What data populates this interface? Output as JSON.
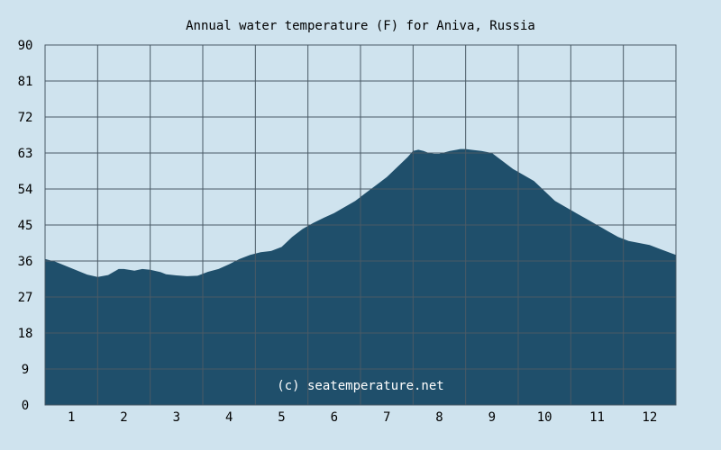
{
  "chart_data": {
    "type": "area",
    "title": "Annual water temperature (F) for Aniva, Russia",
    "xlabel": "",
    "ylabel": "",
    "categories": [
      "1",
      "2",
      "3",
      "4",
      "5",
      "6",
      "7",
      "8",
      "9",
      "10",
      "11",
      "12"
    ],
    "ylim": [
      0,
      90
    ],
    "yticks": [
      0,
      9,
      18,
      27,
      36,
      45,
      54,
      63,
      72,
      81,
      90
    ],
    "grid": true,
    "annotation": "(c) seatemperature.net",
    "series": [
      {
        "x": [
          0.5,
          0.7,
          1.0,
          1.3,
          1.5,
          1.7,
          1.9,
          2.0,
          2.2,
          2.35,
          2.5,
          2.7,
          2.8,
          3.0,
          3.2,
          3.4,
          3.6,
          3.8,
          4.0,
          4.2,
          4.4,
          4.6,
          4.8,
          5.0,
          5.2,
          5.4,
          5.6,
          5.8,
          6.0,
          6.2,
          6.4,
          6.6,
          6.8,
          7.0,
          7.2,
          7.4,
          7.5,
          7.6,
          7.7,
          7.8,
          7.9,
          8.0,
          8.2,
          8.4,
          8.5,
          8.6,
          8.8,
          9.0,
          9.2,
          9.4,
          9.6,
          9.8,
          10.0,
          10.2,
          10.4,
          10.6,
          10.8,
          11.0,
          11.2,
          11.4,
          11.6,
          11.8,
          12.0,
          12.2,
          12.4,
          12.5
        ],
        "values": [
          36.5,
          35.8,
          34.2,
          32.6,
          32.0,
          32.5,
          34.0,
          34.0,
          33.6,
          34.0,
          33.8,
          33.2,
          32.7,
          32.4,
          32.2,
          32.3,
          33.3,
          34.0,
          35.2,
          36.5,
          37.5,
          38.2,
          38.5,
          39.5,
          42.0,
          44.0,
          45.5,
          46.8,
          48.0,
          49.5,
          51.0,
          53.0,
          55.0,
          57.0,
          59.5,
          62.0,
          63.5,
          63.8,
          63.5,
          63.0,
          62.8,
          62.8,
          63.5,
          64.0,
          64.0,
          63.8,
          63.5,
          63.0,
          61.0,
          59.0,
          57.5,
          56.0,
          53.5,
          51.0,
          49.5,
          48.0,
          46.5,
          45.0,
          43.5,
          42.0,
          41.0,
          40.5,
          40.0,
          39.0,
          38.0,
          37.5
        ]
      }
    ],
    "colors": {
      "background": "#cfe3ee",
      "area": "#1f4f6b",
      "grid": "#4a5a66",
      "credit": "#ffffff"
    }
  }
}
